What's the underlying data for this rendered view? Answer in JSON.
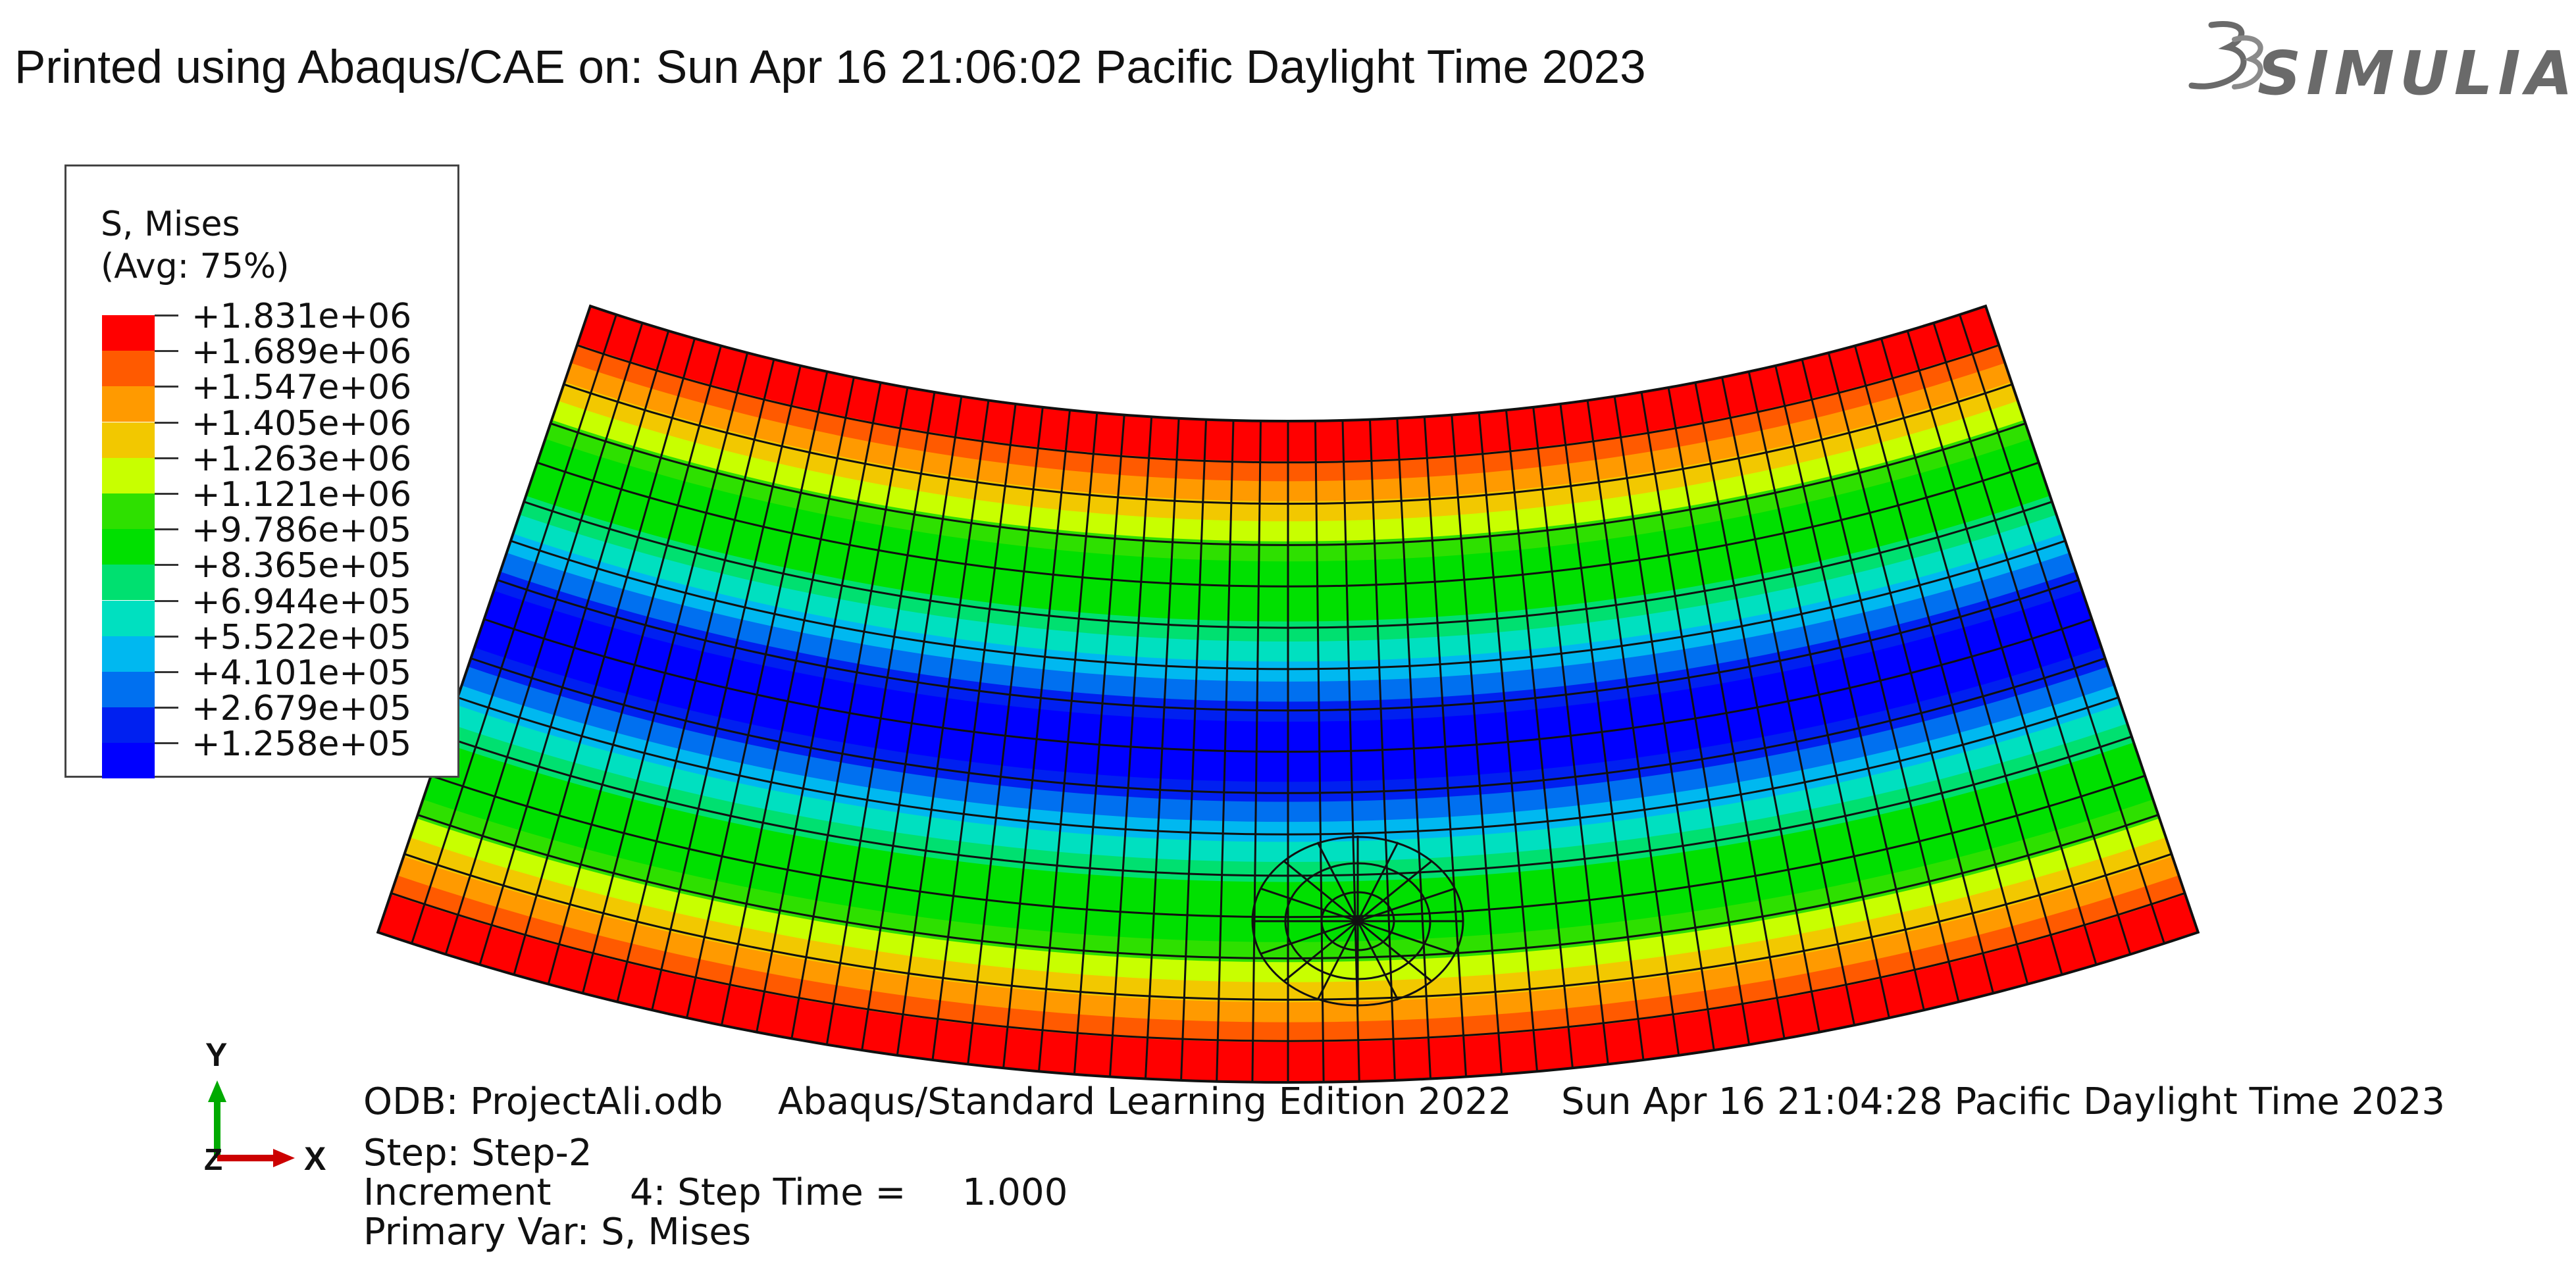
{
  "header": {
    "printed_line": "Printed using Abaqus/CAE on: Sun Apr 16 21:06:02 Pacific Daylight Time 2023",
    "logo_text": "SIMULIA",
    "logo_icon": "3ds-logo-icon"
  },
  "legend": {
    "title_line1": "S, Mises",
    "title_line2": "(Avg: 75%)",
    "values": [
      "+1.831e+06",
      "+1.689e+06",
      "+1.547e+06",
      "+1.405e+06",
      "+1.263e+06",
      "+1.121e+06",
      "+9.786e+05",
      "+8.365e+05",
      "+6.944e+05",
      "+5.522e+05",
      "+4.101e+05",
      "+2.679e+05",
      "+1.258e+05"
    ],
    "colors": [
      "#ff0000",
      "#ff5a00",
      "#ff9a00",
      "#f2c800",
      "#c8ff00",
      "#2ee000",
      "#00e000",
      "#00e070",
      "#00e0c0",
      "#00b8f0",
      "#0070f0",
      "#0020f0",
      "#0000ff"
    ]
  },
  "triad": {
    "y_label": "Y",
    "x_label": "X",
    "z_label": "Z"
  },
  "info": {
    "odb": "ODB: ProjectAli.odb",
    "edition": "Abaqus/Standard Learning Edition 2022",
    "date": "Sun Apr 16 21:04:28 Pacific Daylight Time 2023",
    "step": "Step: Step-2",
    "increment_label": "Increment",
    "increment_value": "4: Step Time =",
    "step_time": "1.000",
    "primary_var": "Primary Var: S, Mises"
  }
}
